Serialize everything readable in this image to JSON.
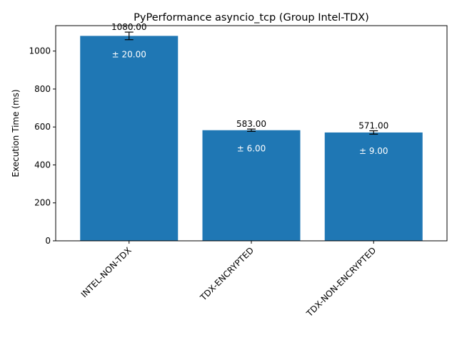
{
  "chart_data": {
    "type": "bar",
    "title": "PyPerformance asyncio_tcp (Group Intel-TDX)",
    "xlabel": "",
    "ylabel": "Execution Time (ms)",
    "categories": [
      "INTEL-NON-TDX",
      "TDX-ENCRYPTED",
      "TDX-NON-ENCRYPTED"
    ],
    "values": [
      1080.0,
      583.0,
      571.0
    ],
    "errors": [
      20.0,
      6.0,
      9.0
    ],
    "value_labels": [
      "1080.00",
      "583.00",
      "571.00"
    ],
    "error_labels": [
      "± 20.00",
      "± 6.00",
      "± 9.00"
    ],
    "ylim": [
      0,
      1134
    ],
    "yticks": [
      0,
      200,
      400,
      600,
      800,
      1000
    ],
    "ytick_labels": [
      "0",
      "200",
      "400",
      "600",
      "800",
      "1000"
    ],
    "bar_color": "#1f77b4",
    "grid": false,
    "legend": "none"
  }
}
